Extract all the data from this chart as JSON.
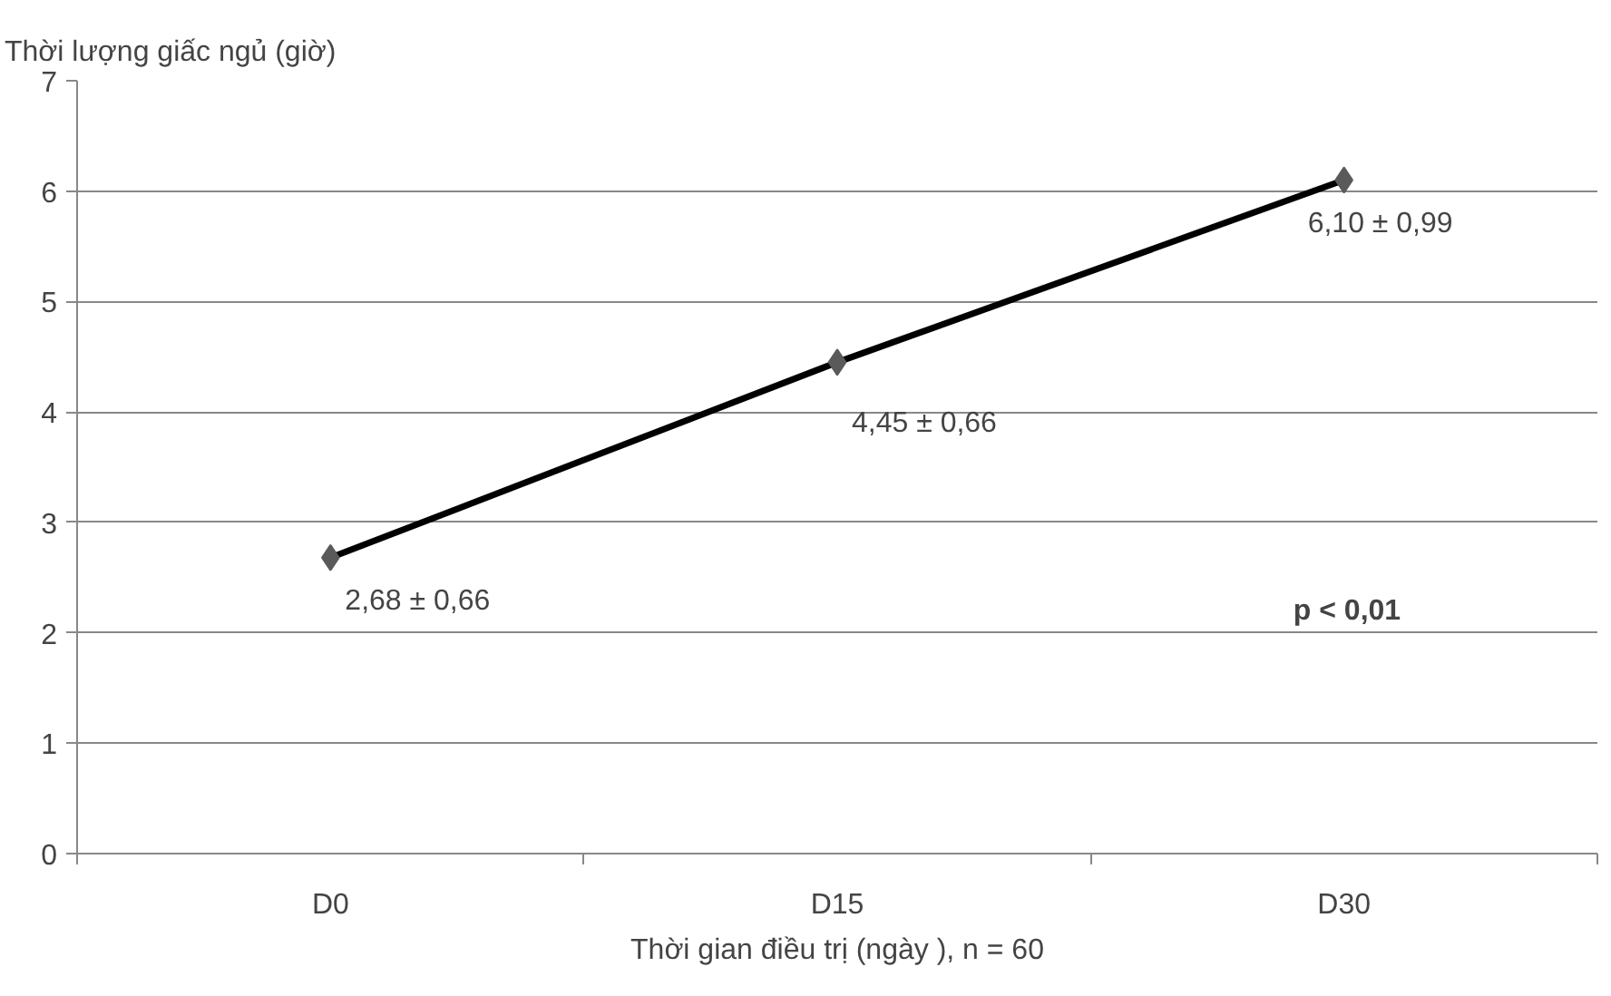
{
  "chart_data": {
    "type": "line",
    "ylabel": "Thời lượng giấc ngủ (giờ)",
    "xlabel": "Thời gian điều trị (ngày ), n = 60",
    "categories": [
      "D0",
      "D15",
      "D30"
    ],
    "series": [
      {
        "color": "#000000",
        "values": [
          2.68,
          4.45,
          6.1
        ],
        "value_labels": [
          "2,68 ± 0,66",
          "4,45 ± 0,66",
          "6,10 ± 0,99"
        ]
      }
    ],
    "ylim": [
      0,
      7
    ],
    "yticks": [
      0,
      1,
      2,
      3,
      4,
      5,
      6,
      7
    ],
    "grid": "y",
    "marker": "diamond",
    "line_style": "solid",
    "annotations": [
      "p < 0,01"
    ]
  }
}
